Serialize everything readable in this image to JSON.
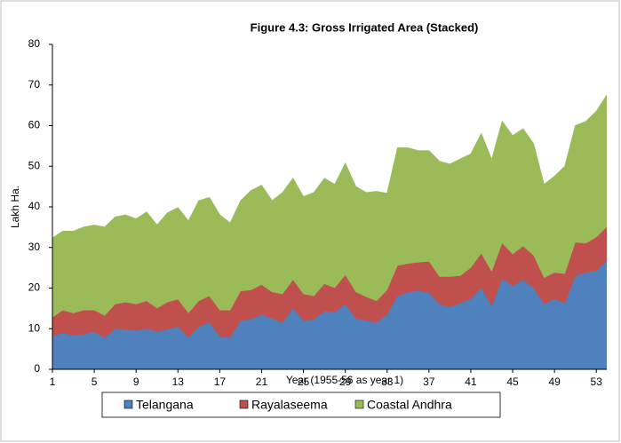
{
  "chart_data": {
    "type": "stacked_area",
    "title": "Figure 4.3: Gross Irrigated Area (Stacked)",
    "x_label": "Year (1955-56 as year 1)",
    "y_label": "Lakh Ha.",
    "x": [
      1,
      2,
      3,
      4,
      5,
      6,
      7,
      8,
      9,
      10,
      11,
      12,
      13,
      14,
      15,
      16,
      17,
      18,
      19,
      20,
      21,
      22,
      23,
      24,
      25,
      26,
      27,
      28,
      29,
      30,
      31,
      32,
      33,
      34,
      35,
      36,
      37,
      38,
      39,
      40,
      41,
      42,
      43,
      44,
      45,
      46,
      47,
      48,
      49,
      50,
      51,
      52,
      53,
      54
    ],
    "xlim": [
      1,
      54
    ],
    "xticks": [
      1,
      5,
      9,
      13,
      17,
      21,
      25,
      29,
      33,
      37,
      41,
      45,
      49,
      53
    ],
    "ylim": [
      0,
      80
    ],
    "yticks": [
      0,
      10,
      20,
      30,
      40,
      50,
      60,
      70,
      80
    ],
    "legend": "bottom",
    "series": [
      {
        "name": "Telangana",
        "color": "#4f81bd",
        "values": [
          8,
          9,
          8.3,
          8.6,
          9.2,
          7.7,
          10,
          9.8,
          9.5,
          10,
          9.3,
          9.8,
          10.5,
          7.8,
          10.5,
          11.5,
          8,
          7.8,
          12,
          12.3,
          13.5,
          12.5,
          11.5,
          15,
          12,
          12.2,
          14.3,
          14,
          16,
          12.5,
          12,
          11.5,
          13.5,
          18,
          19,
          19.3,
          18.8,
          16,
          15.3,
          16.3,
          17.3,
          20,
          15.5,
          22.3,
          20.5,
          22,
          20,
          16,
          17.3,
          16.2,
          23,
          23.8,
          24.2,
          26.7
        ]
      },
      {
        "name": "Rayalaseema",
        "color": "#c0504d",
        "values": [
          4.8,
          5.5,
          5.5,
          5.9,
          5.3,
          5.5,
          6,
          6.7,
          6.5,
          6.8,
          5.7,
          6.7,
          6.7,
          6,
          6.3,
          6.5,
          6.5,
          6.7,
          7.2,
          7.2,
          7.3,
          6.5,
          7,
          7,
          6.5,
          5.8,
          6.7,
          6,
          7.2,
          6.5,
          5.8,
          5.3,
          6,
          7.5,
          7,
          7,
          7.7,
          6.8,
          7.5,
          6.7,
          7.7,
          8.5,
          8.5,
          8.7,
          7.8,
          8.3,
          8,
          6.5,
          6.5,
          7.3,
          8.2,
          7.2,
          8.3,
          8.3
        ]
      },
      {
        "name": "Coastal Andhra",
        "color": "#9bbb59",
        "values": [
          19.5,
          19.5,
          20.2,
          20.5,
          21,
          21.8,
          21.5,
          21.5,
          21,
          21.9,
          20.5,
          22,
          22.6,
          22.7,
          24.7,
          24.3,
          23.5,
          21.5,
          22.3,
          24.5,
          24.5,
          22.5,
          25,
          25,
          24,
          25.5,
          26,
          25.5,
          27.5,
          26,
          25.7,
          27,
          23.8,
          29,
          28.5,
          27.5,
          27.3,
          28.4,
          27.7,
          28.8,
          28,
          29.5,
          27.6,
          30,
          29.2,
          28.9,
          27.5,
          23,
          23.7,
          26.5,
          28.8,
          30,
          31,
          32.5
        ]
      }
    ]
  }
}
